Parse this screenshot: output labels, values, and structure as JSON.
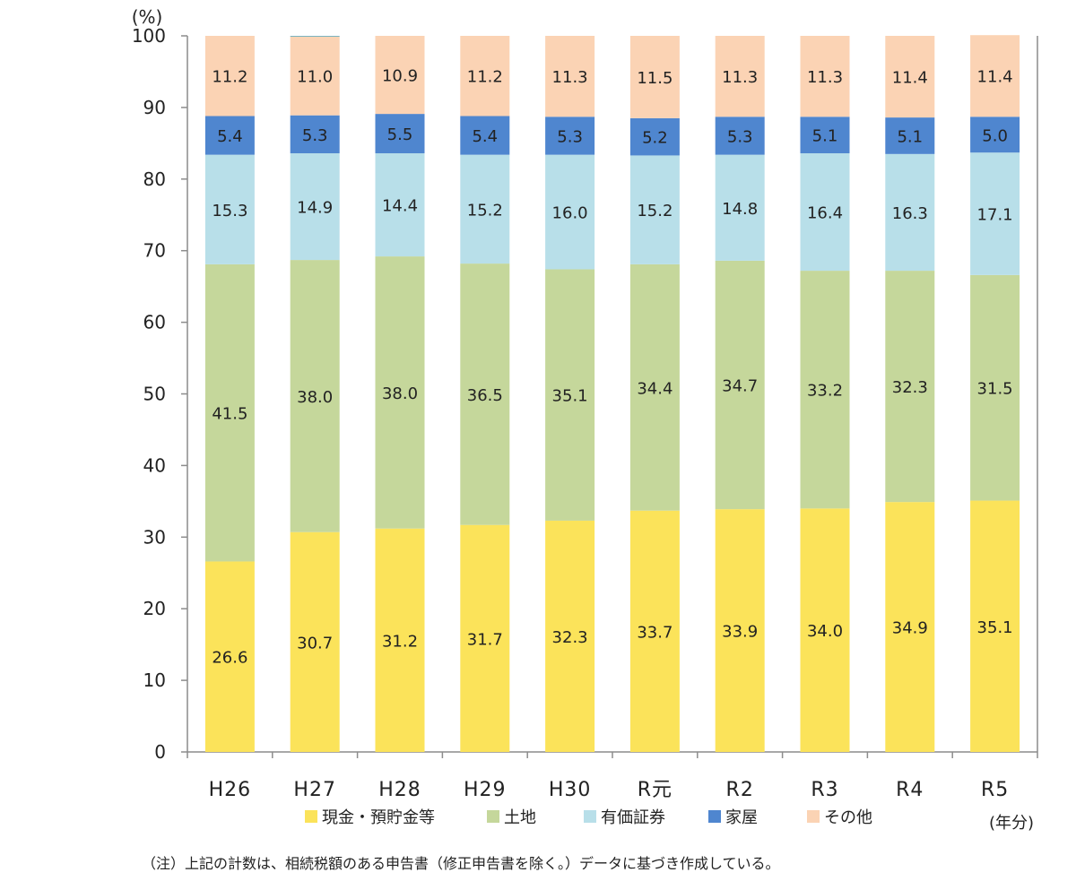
{
  "chart_data": {
    "type": "bar",
    "stacked": true,
    "unit_label": "(%)",
    "x_unit_label": "(年分)",
    "ylim": [
      0,
      100
    ],
    "yticks": [
      0,
      10,
      20,
      30,
      40,
      50,
      60,
      70,
      80,
      90,
      100
    ],
    "categories": [
      "H26",
      "H27",
      "H28",
      "H29",
      "H30",
      "R元",
      "R2",
      "R3",
      "R4",
      "R5"
    ],
    "series": [
      {
        "name": "現金・預貯金等",
        "color": "#fbe35a",
        "values": [
          26.6,
          30.7,
          31.2,
          31.7,
          32.3,
          33.7,
          33.9,
          34.0,
          34.9,
          35.1
        ]
      },
      {
        "name": "土地",
        "color": "#c5d79b",
        "values": [
          41.5,
          38.0,
          38.0,
          36.5,
          35.1,
          34.4,
          34.7,
          33.2,
          32.3,
          31.5
        ]
      },
      {
        "name": "有価証券",
        "color": "#b8dfe9",
        "values": [
          15.3,
          14.9,
          14.4,
          15.2,
          16.0,
          15.2,
          14.8,
          16.4,
          16.3,
          17.1
        ]
      },
      {
        "name": "家屋",
        "color": "#4f86cf",
        "values": [
          5.4,
          5.3,
          5.5,
          5.4,
          5.3,
          5.2,
          5.3,
          5.1,
          5.1,
          5.0
        ]
      },
      {
        "name": "その他",
        "color": "#fbd3b4",
        "values": [
          11.2,
          11.0,
          10.9,
          11.2,
          11.3,
          11.5,
          11.3,
          11.3,
          11.4,
          11.4
        ]
      }
    ],
    "grid": false,
    "legend_position": "bottom"
  },
  "note": "（注）上記の計数は、相続税額のある申告書（修正申告書を除く。）データに基づき作成している。"
}
